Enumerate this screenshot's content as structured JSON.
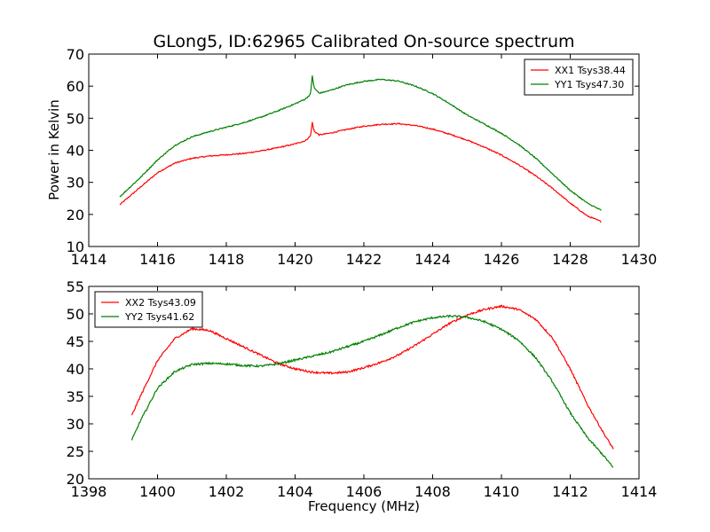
{
  "chart_data": [
    {
      "type": "line",
      "title": "GLong5, ID:62965 Calibrated On-source spectrum",
      "xlabel": "",
      "ylabel": "Power in Kelvin",
      "xlim": [
        1414,
        1430
      ],
      "ylim": [
        10,
        70
      ],
      "xticks": [
        "1414",
        "1416",
        "1418",
        "1420",
        "1422",
        "1424",
        "1426",
        "1428",
        "1430"
      ],
      "yticks": [
        "10",
        "20",
        "30",
        "40",
        "50",
        "60",
        "70"
      ],
      "legend": "top-right",
      "series": [
        {
          "name": "XX1 Tsys38.44",
          "color": "#ff0000",
          "x": [
            1414.9,
            1415.5,
            1416.0,
            1416.5,
            1417.0,
            1417.5,
            1418.0,
            1418.5,
            1419.0,
            1419.5,
            1420.0,
            1420.3,
            1420.45,
            1420.5,
            1420.55,
            1420.7,
            1421.0,
            1421.5,
            1422.0,
            1422.5,
            1423.0,
            1423.5,
            1424.0,
            1424.5,
            1425.0,
            1425.5,
            1426.0,
            1426.5,
            1427.0,
            1427.5,
            1428.0,
            1428.5,
            1428.9
          ],
          "y": [
            23,
            28.5,
            33,
            36,
            37.5,
            38.2,
            38.6,
            39,
            39.8,
            40.8,
            42,
            43,
            44.5,
            48.7,
            46,
            44.8,
            45.3,
            46.5,
            47.5,
            48.1,
            48.3,
            47.7,
            46.6,
            45,
            43.2,
            41,
            38.5,
            35.5,
            32,
            28,
            23.5,
            19.5,
            17.8
          ]
        },
        {
          "name": "YY1 Tsys47.30",
          "color": "#008000",
          "x": [
            1414.9,
            1415.5,
            1416.0,
            1416.5,
            1417.0,
            1417.5,
            1418.0,
            1418.5,
            1419.0,
            1419.5,
            1420.0,
            1420.3,
            1420.45,
            1420.5,
            1420.55,
            1420.7,
            1421.0,
            1421.5,
            1422.0,
            1422.5,
            1423.0,
            1423.5,
            1424.0,
            1424.5,
            1425.0,
            1425.5,
            1426.0,
            1426.5,
            1427.0,
            1427.5,
            1428.0,
            1428.5,
            1428.9
          ],
          "y": [
            25.5,
            31.5,
            37,
            41.5,
            44.2,
            45.8,
            47.2,
            48.6,
            50.3,
            52.3,
            54.5,
            56,
            57.5,
            63.4,
            59.5,
            57.8,
            58.6,
            60.4,
            61.5,
            62.1,
            61.6,
            60,
            57.7,
            54.5,
            51,
            48.2,
            45.3,
            41.8,
            37.5,
            32.5,
            27.5,
            23.5,
            21.3
          ]
        }
      ]
    },
    {
      "type": "line",
      "title": "",
      "xlabel": "Frequency (MHz)",
      "ylabel": "",
      "xlim": [
        1398,
        1414
      ],
      "ylim": [
        20,
        55
      ],
      "xticks": [
        "1398",
        "1400",
        "1402",
        "1404",
        "1406",
        "1408",
        "1410",
        "1412",
        "1414"
      ],
      "yticks": [
        "20",
        "25",
        "30",
        "35",
        "40",
        "45",
        "50",
        "55"
      ],
      "legend": "top-left",
      "series": [
        {
          "name": "XX2 Tsys43.09",
          "color": "#ff0000",
          "x": [
            1399.25,
            1399.5,
            1400.0,
            1400.5,
            1401.0,
            1401.5,
            1402.0,
            1402.5,
            1403.0,
            1403.5,
            1404.0,
            1404.5,
            1405.0,
            1405.5,
            1406.0,
            1406.5,
            1407.0,
            1407.5,
            1408.0,
            1408.5,
            1409.0,
            1409.5,
            1410.0,
            1410.5,
            1411.0,
            1411.5,
            1412.0,
            1412.5,
            1413.0,
            1413.25
          ],
          "y": [
            31.5,
            35,
            41.5,
            45.5,
            47.3,
            47,
            45.5,
            44,
            42.5,
            41,
            40,
            39.4,
            39.2,
            39.4,
            40.2,
            41.2,
            42.5,
            44.3,
            46.3,
            48.3,
            49.8,
            50.8,
            51.4,
            50.8,
            49,
            45.5,
            40,
            33.5,
            28,
            25.5
          ]
        },
        {
          "name": "YY2 Tsys41.62",
          "color": "#008000",
          "x": [
            1399.25,
            1399.5,
            1400.0,
            1400.5,
            1401.0,
            1401.5,
            1402.0,
            1402.5,
            1403.0,
            1403.5,
            1404.0,
            1404.5,
            1405.0,
            1405.5,
            1406.0,
            1406.5,
            1407.0,
            1407.5,
            1408.0,
            1408.5,
            1409.0,
            1409.5,
            1410.0,
            1410.5,
            1411.0,
            1411.5,
            1412.0,
            1412.5,
            1413.0,
            1413.25
          ],
          "y": [
            27,
            30.5,
            36.5,
            39.5,
            40.8,
            41,
            40.9,
            40.6,
            40.5,
            40.9,
            41.6,
            42.3,
            43,
            44,
            45,
            46.2,
            47.5,
            48.6,
            49.3,
            49.6,
            49.4,
            48.6,
            47.2,
            45.2,
            42,
            37.5,
            32,
            27.5,
            24,
            22
          ]
        }
      ]
    }
  ]
}
